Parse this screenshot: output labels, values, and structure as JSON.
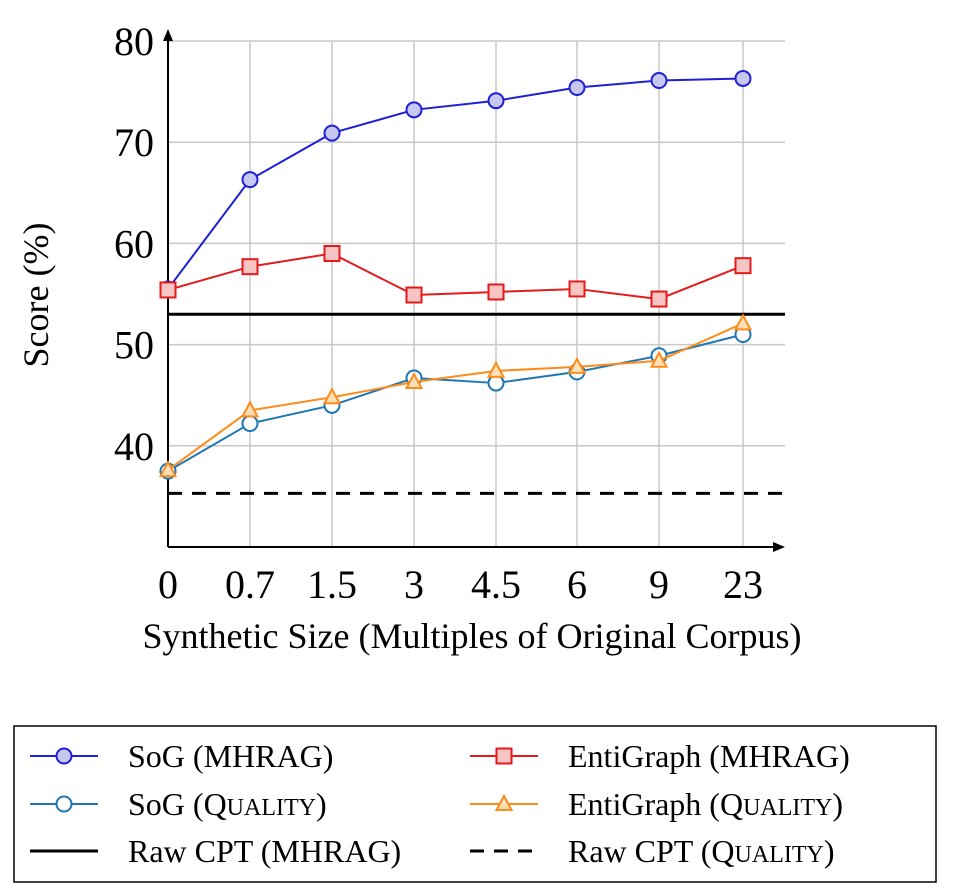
{
  "chart_data": {
    "type": "line",
    "xlabel": "Synthetic Size (Multiples of Original Corpus)",
    "ylabel": "Score (%)",
    "categories": [
      "0",
      "0.7",
      "1.5",
      "3",
      "4.5",
      "6",
      "9",
      "23"
    ],
    "ylim": [
      30,
      80
    ],
    "yticks": [
      40,
      50,
      60,
      70,
      80
    ],
    "grid": true,
    "legend_position": "bottom",
    "series": [
      {
        "name": "SoG (MHRAG)",
        "color": "#1f1fd6",
        "fill": "#c8c8ee",
        "marker": "circle",
        "values": [
          55.5,
          66.3,
          70.9,
          73.2,
          74.1,
          75.4,
          76.1,
          76.3
        ]
      },
      {
        "name": "EntiGraph (MHRAG)",
        "color": "#e41a1c",
        "fill": "#f7c4c4",
        "marker": "square",
        "values": [
          55.4,
          57.7,
          59.0,
          54.9,
          55.2,
          55.5,
          54.5,
          57.8
        ]
      },
      {
        "name": "SoG (QUALITY)",
        "color": "#1f77b4",
        "fill": "none",
        "marker": "circle",
        "values": [
          37.5,
          42.2,
          44.0,
          46.7,
          46.2,
          47.3,
          48.9,
          51.0
        ]
      },
      {
        "name": "EntiGraph (QUALITY)",
        "color": "#ff8c1a",
        "fill": "#fde0b8",
        "marker": "triangle",
        "values": [
          37.6,
          43.5,
          44.8,
          46.3,
          47.4,
          47.8,
          48.4,
          52.1
        ]
      }
    ],
    "reference_lines": [
      {
        "name": "Raw CPT (MHRAG)",
        "value": 53.0,
        "color": "#000000",
        "dash": "solid"
      },
      {
        "name": "Raw CPT (QUALITY)",
        "value": 35.3,
        "color": "#000000",
        "dash": "dashed"
      }
    ],
    "legend": [
      {
        "label_main": "SoG (MHRAG)",
        "label_prefix": "",
        "label_sc": "",
        "label_suffix": "",
        "key": "sog_mhrag"
      },
      {
        "label_main": "EntiGraph (MHRAG)",
        "label_prefix": "",
        "label_sc": "",
        "label_suffix": "",
        "key": "enti_mhrag"
      },
      {
        "label_main": "",
        "label_prefix": "SoG (Q",
        "label_sc": "UALITY",
        "label_suffix": ")",
        "key": "sog_quality"
      },
      {
        "label_main": "",
        "label_prefix": "EntiGraph (Q",
        "label_sc": "UALITY",
        "label_suffix": ")",
        "key": "enti_quality"
      },
      {
        "label_main": "Raw CPT (MHRAG)",
        "label_prefix": "",
        "label_sc": "",
        "label_suffix": "",
        "key": "raw_mhrag"
      },
      {
        "label_main": "",
        "label_prefix": "Raw CPT (Q",
        "label_sc": "UALITY",
        "label_suffix": ")",
        "key": "raw_quality"
      }
    ]
  }
}
